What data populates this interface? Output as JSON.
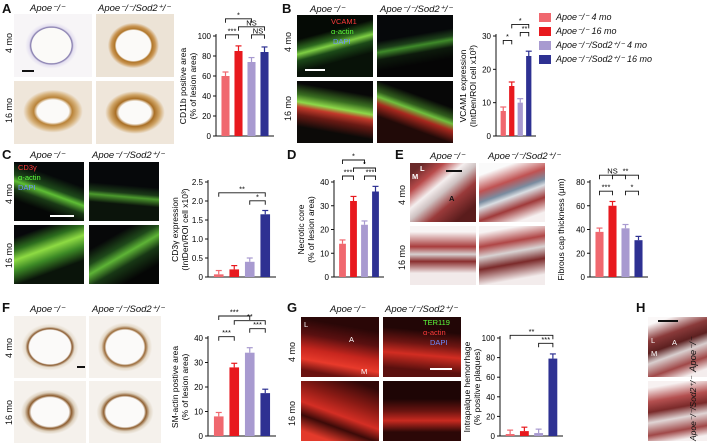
{
  "colors": {
    "apoe4": "#f0686f",
    "apoe16": "#e8191e",
    "sod4": "#a89ad0",
    "sod16": "#2e3192"
  },
  "genotypes": {
    "apoe": "Apoe⁻/⁻",
    "sod": "Apoe⁻/⁻/Sod2⁺/⁻"
  },
  "ages": {
    "m4": "4 mo",
    "m16": "16 mo"
  },
  "legend": [
    "Apoe⁻/⁻ 4 mo",
    "Apoe⁻/⁻ 16 mo",
    "Apoe⁻/⁻/Sod2⁺/⁻ 4 mo",
    "Apoe⁻/⁻/Sod2⁺/⁻ 16 mo"
  ],
  "panels": {
    "A": {
      "label": "A"
    },
    "B": {
      "label": "B",
      "stains": [
        "VCAM1",
        "α-actin",
        "DAPI"
      ]
    },
    "C": {
      "label": "C",
      "stains": [
        "CD3γ",
        "α-actin",
        "DAPI"
      ]
    },
    "D": {
      "label": "D"
    },
    "E": {
      "label": "E",
      "micro": {
        "M": "M",
        "L": "L",
        "A": "A"
      }
    },
    "F": {
      "label": "F"
    },
    "G": {
      "label": "G",
      "stains": [
        "TER119",
        "α-actin",
        "DAPI"
      ],
      "micro": {
        "L": "L",
        "A": "A",
        "M": "M"
      }
    },
    "H": {
      "label": "H",
      "micro": {
        "L": "L",
        "A": "A",
        "M": "M"
      }
    }
  },
  "chart_data": [
    {
      "id": "A",
      "type": "bar",
      "ylabel": "CD11b positive area",
      "ylabel2": "(% of lesion area)",
      "ylim": [
        0,
        100
      ],
      "yticks": [
        "0",
        "20",
        "40",
        "60",
        "80",
        "100"
      ],
      "values": [
        60,
        85,
        74,
        84
      ],
      "sig": [
        "***",
        "*",
        "NS",
        "NS"
      ]
    },
    {
      "id": "B",
      "type": "bar",
      "ylabel": "VCAM1 expression",
      "ylabel2": "(IntDen/ROI cell x10³)",
      "ylim": [
        0,
        30
      ],
      "yticks": [
        "0",
        "10",
        "20",
        "30"
      ],
      "values": [
        7.5,
        15,
        10,
        24
      ],
      "sig": [
        "*",
        "*",
        "**"
      ]
    },
    {
      "id": "C",
      "type": "bar",
      "ylabel": "CD3γ expression",
      "ylabel2": "(IntDen/ROI cell x10³)",
      "ylim": [
        0,
        2.5
      ],
      "yticks": [
        "0",
        "0.5",
        "1.0",
        "1.5",
        "2.0",
        "2.5"
      ],
      "values": [
        0.07,
        0.2,
        0.4,
        1.65
      ],
      "sig": [
        "**",
        "*"
      ]
    },
    {
      "id": "D",
      "type": "bar",
      "ylabel": "Necrotic core",
      "ylabel2": "(% of lesion area)",
      "ylim": [
        0,
        40
      ],
      "yticks": [
        "0",
        "10",
        "20",
        "30",
        "40"
      ],
      "values": [
        14,
        32,
        22,
        36
      ],
      "sig": [
        "***",
        "*",
        "*",
        "***"
      ]
    },
    {
      "id": "E",
      "type": "bar",
      "ylabel": "Fibrous cap thickness (μm)",
      "ylabel2": "",
      "ylim": [
        0,
        80
      ],
      "yticks": [
        "0",
        "20",
        "40",
        "60",
        "80"
      ],
      "values": [
        38,
        60,
        41,
        31
      ],
      "sig": [
        "NS",
        "**",
        "***",
        "*"
      ]
    },
    {
      "id": "F",
      "type": "bar",
      "ylabel": "SM-actin postive area",
      "ylabel2": "(% of lesion area)",
      "ylim": [
        0,
        40
      ],
      "yticks": [
        "0",
        "10",
        "20",
        "30",
        "40"
      ],
      "values": [
        8,
        28,
        34,
        17.5
      ],
      "sig": [
        "***",
        "**",
        "***",
        "***"
      ]
    },
    {
      "id": "G",
      "type": "bar",
      "ylabel": "Intrapalque hemorrhage",
      "ylabel2": "(% positive plaques)",
      "ylim": [
        0,
        100
      ],
      "yticks": [
        "0",
        "20",
        "40",
        "60",
        "80",
        "100"
      ],
      "values": [
        2,
        5,
        3,
        79
      ],
      "sig": [
        "**",
        "***"
      ]
    }
  ]
}
